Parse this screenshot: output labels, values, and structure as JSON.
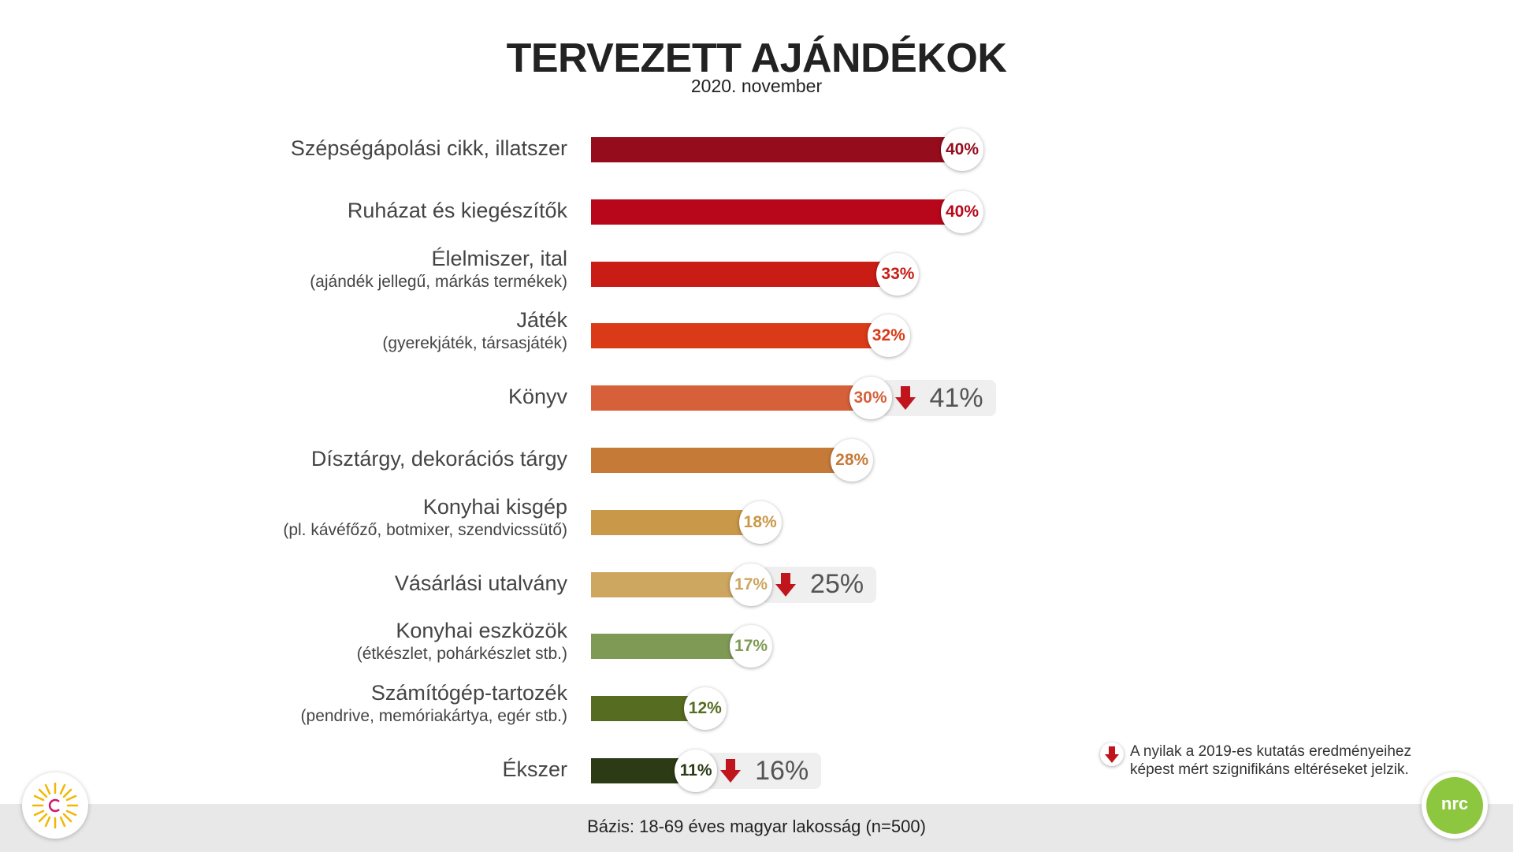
{
  "title": "TERVEZETT AJÁNDÉKOK",
  "subtitle": "2020. november",
  "chart_data": {
    "type": "bar",
    "orientation": "horizontal",
    "categories": [
      {
        "main": "Szépségápolási cikk, illatszer",
        "sub": ""
      },
      {
        "main": "Ruházat és kiegészítők",
        "sub": ""
      },
      {
        "main": "Élelmiszer, ital",
        "sub": "(ajándék jellegű, márkás termékek)"
      },
      {
        "main": "Játék",
        "sub": "(gyerekjáték, társasjáték)"
      },
      {
        "main": "Könyv",
        "sub": ""
      },
      {
        "main": "Dísztárgy, dekorációs tárgy",
        "sub": ""
      },
      {
        "main": "Konyhai kisgép",
        "sub": "(pl. kávéfőző, botmixer, szendvicssütő)"
      },
      {
        "main": "Vásárlási utalvány",
        "sub": ""
      },
      {
        "main": "Konyhai eszközök",
        "sub": "(étkészlet, pohárkészlet stb.)"
      },
      {
        "main": "Számítógép-tartozék",
        "sub": "(pendrive, memóriakártya, egér stb.)"
      },
      {
        "main": "Ékszer",
        "sub": ""
      }
    ],
    "values": [
      40,
      40,
      33,
      32,
      30,
      28,
      18,
      17,
      17,
      12,
      11
    ],
    "value_labels": [
      "40%",
      "40%",
      "33%",
      "32%",
      "30%",
      "28%",
      "18%",
      "17%",
      "17%",
      "12%",
      "11%"
    ],
    "colors": [
      "#950c1c",
      "#b8071a",
      "#c81c15",
      "#da3a17",
      "#d5603a",
      "#c57a38",
      "#c99848",
      "#cda660",
      "#7f9a55",
      "#556c21",
      "#2c3a16"
    ],
    "previous_2019": [
      null,
      null,
      null,
      null,
      "41%",
      null,
      null,
      "25%",
      null,
      null,
      "16%"
    ],
    "significant_decrease": [
      false,
      false,
      false,
      false,
      true,
      false,
      false,
      true,
      false,
      false,
      true
    ]
  },
  "legend_note": "A nyilak a 2019-es kutatás eredményeihez képest mért szignifikáns eltéréseket jelzik.",
  "base_note": "Bázis: 18-69 éves magyar lakosság  (n=500)",
  "icons": {
    "decrease": "down-arrow-icon",
    "logo_left": "sun-logo-icon",
    "logo_right": "nrc-logo-icon"
  },
  "logo_right_text": "nrc"
}
